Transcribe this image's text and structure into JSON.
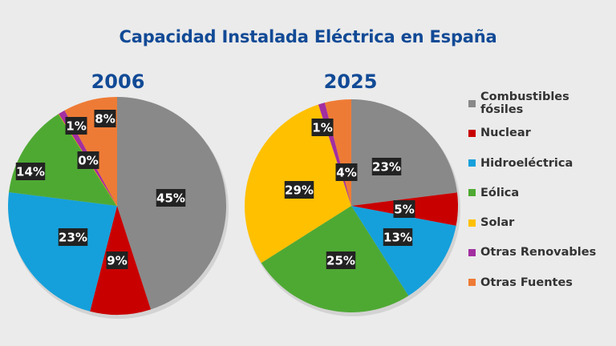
{
  "chart_data": [
    {
      "type": "pie",
      "title": "Capacidad Instalada Eléctrica en España",
      "subtitle": "2006",
      "categories": [
        "Combustibles fósiles",
        "Nuclear",
        "Hidroeléctrica",
        "Eólica",
        "Solar",
        "Otras Renovables",
        "Otras Fuentes"
      ],
      "values": [
        45,
        9,
        23,
        14,
        0,
        1,
        8
      ],
      "labels": [
        "45%",
        "9%",
        "23%",
        "14%",
        "0%",
        "1%",
        "8%"
      ],
      "unit": "%",
      "start": "12 o'clock",
      "direction": "clockwise",
      "legend": "right"
    },
    {
      "type": "pie",
      "title": "Capacidad Instalada Eléctrica en España",
      "subtitle": "2025",
      "categories": [
        "Combustibles fósiles",
        "Nuclear",
        "Hidroeléctrica",
        "Eólica",
        "Solar",
        "Otras Renovables",
        "Otras Fuentes"
      ],
      "values": [
        23,
        5,
        13,
        25,
        29,
        1,
        4
      ],
      "labels": [
        "23%",
        "5%",
        "13%",
        "25%",
        "29%",
        "1%",
        "4%"
      ],
      "unit": "%",
      "start": "12 o'clock",
      "direction": "clockwise",
      "legend": "right"
    }
  ],
  "page": {
    "title": "Capacidad Instalada Eléctrica en España",
    "years": [
      "2006",
      "2025"
    ]
  },
  "legend": {
    "items": [
      {
        "label": "Combustibles fósiles",
        "color": "#898989"
      },
      {
        "label": "Nuclear",
        "color": "#c90000"
      },
      {
        "label": "Hidroeléctrica",
        "color": "#15a0db"
      },
      {
        "label": "Eólica",
        "color": "#4ea933"
      },
      {
        "label": "Solar",
        "color": "#ffc000"
      },
      {
        "label": "Otras Renovables",
        "color": "#a32ea0"
      },
      {
        "label": "Otras Fuentes",
        "color": "#ee7b35"
      }
    ]
  }
}
